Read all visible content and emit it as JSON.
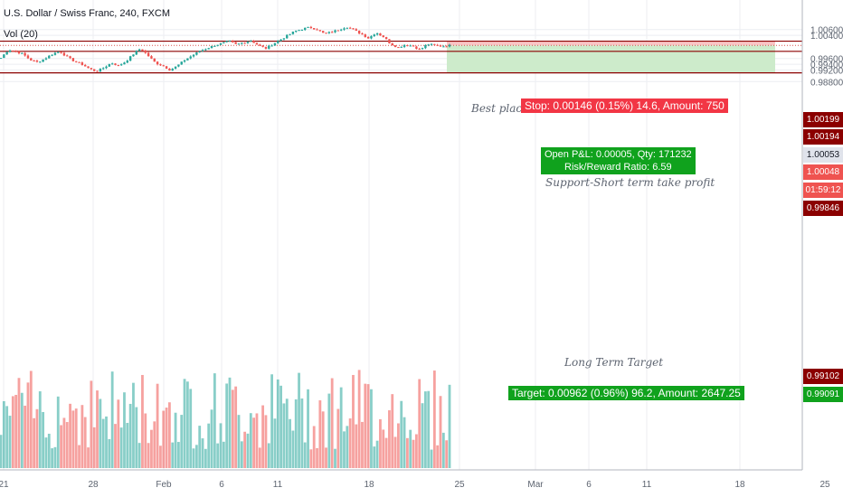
{
  "header": {
    "symbol_line": "U.S. Dollar / Swiss Franc, 240, FXCM",
    "volume_line": "Vol (20)"
  },
  "colors": {
    "up": "#26a69a",
    "down": "#ef5350",
    "line": "#8b0000",
    "stop_zone": "#f9c6c6",
    "target_zone": "#cdebcb",
    "stop_tag": "#f23645",
    "target_tag": "#10a21d"
  },
  "position": {
    "stop_label": "Stop: 0.00146 (0.15%) 14.6, Amount: 750",
    "pnl_label": "Open P&L: 0.00005, Qty: 171232",
    "rr_label": "Risk/Reward Ratio: 6.59",
    "target_label": "Target: 0.00962 (0.96%) 96.2, Amount: 2647.25"
  },
  "annotations": {
    "best_text": "Best plac",
    "support_text": "Support-Short term take profit",
    "long_target_text": "Long Term Target"
  },
  "price_badges": {
    "b1": "1.00199",
    "b2": "1.00194",
    "b3": "1.00053",
    "b4": "1.00048",
    "countdown": "01:59:12",
    "b5": "0.99846",
    "b6": "0.99102",
    "b7": "0.99091"
  },
  "chart_data": {
    "type": "line",
    "symbol": "U.S. Dollar / Swiss Franc, 240, FXCM",
    "y_ticks": [
      "1.00600",
      "1.00400",
      "0.99600",
      "0.99400",
      "0.99200",
      "0.98800"
    ],
    "x_ticks": [
      "21",
      "28",
      "Feb",
      "6",
      "11",
      "18",
      "25",
      "Mar",
      "6",
      "11",
      "18",
      "25"
    ],
    "ylim": [
      0.9872,
      1.0067
    ],
    "horizontal_levels": [
      1.00199,
      0.99846,
      0.99102
    ],
    "entry": 1.00053,
    "stop": 1.00199,
    "target": 0.99091,
    "series": [
      {
        "values": [
          0.9962,
          0.999,
          0.9985,
          0.9975,
          0.9955,
          0.9947,
          0.996,
          0.9975,
          0.9985,
          0.9965,
          0.995,
          0.994,
          0.9925,
          0.9915,
          0.9928,
          0.9945,
          0.9935,
          0.995,
          0.9975,
          0.9995,
          0.997,
          0.9945,
          0.9935,
          0.992,
          0.9935,
          0.9955,
          0.997,
          0.9985,
          0.9995,
          1.0005,
          1.0012,
          1.002,
          1.0008,
          1.0015,
          1.0022,
          1.0005,
          0.9995,
          1.001,
          1.0025,
          1.004,
          1.0055,
          1.0062,
          1.0068,
          1.006,
          1.0045,
          1.0052,
          1.006,
          1.007,
          1.0058,
          1.0045,
          1.003,
          1.005,
          1.0035,
          1.001,
          0.9998,
          1.0008,
          1.0003,
          0.999,
          1.001,
          1.0005,
          1.0002,
          1.0005
        ]
      }
    ]
  }
}
